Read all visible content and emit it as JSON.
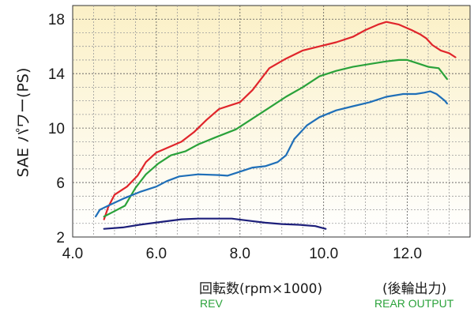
{
  "chart_data": {
    "type": "line",
    "title": "",
    "ylabel": "SAE パワー(PS)",
    "xlabel": "回転数(rpm×1000)",
    "xlabel_note": "(後輪出力)",
    "sublabels": {
      "rev": "REV",
      "rear_output": "REAR OUTPUT"
    },
    "xlim": [
      4.0,
      13.5
    ],
    "ylim": [
      2,
      19
    ],
    "xticks": [
      "4.0",
      "6.0",
      "8.0",
      "10.0",
      "12.0"
    ],
    "xtick_values": [
      4,
      6,
      8,
      10,
      12
    ],
    "yticks": [
      "2",
      "6",
      "10",
      "14",
      "18"
    ],
    "ytick_values": [
      2,
      6,
      10,
      14,
      18
    ],
    "grid": true,
    "background_gradient": [
      "#fbf0c6",
      "#ffffff"
    ],
    "series": [
      {
        "color": "#e0252b",
        "points": [
          [
            4.75,
            3.3
          ],
          [
            4.85,
            4.2
          ],
          [
            5.0,
            5.1
          ],
          [
            5.3,
            5.7
          ],
          [
            5.55,
            6.5
          ],
          [
            5.75,
            7.5
          ],
          [
            6.0,
            8.2
          ],
          [
            6.3,
            8.6
          ],
          [
            6.6,
            9.0
          ],
          [
            6.9,
            9.7
          ],
          [
            7.2,
            10.6
          ],
          [
            7.5,
            11.4
          ],
          [
            7.8,
            11.7
          ],
          [
            8.0,
            11.9
          ],
          [
            8.3,
            12.8
          ],
          [
            8.7,
            14.4
          ],
          [
            9.1,
            15.1
          ],
          [
            9.5,
            15.7
          ],
          [
            9.9,
            16.0
          ],
          [
            10.3,
            16.3
          ],
          [
            10.7,
            16.7
          ],
          [
            11.0,
            17.2
          ],
          [
            11.3,
            17.6
          ],
          [
            11.5,
            17.8
          ],
          [
            11.8,
            17.6
          ],
          [
            12.1,
            17.2
          ],
          [
            12.3,
            16.9
          ],
          [
            12.45,
            16.6
          ],
          [
            12.6,
            16.1
          ],
          [
            12.8,
            15.7
          ],
          [
            13.0,
            15.5
          ],
          [
            13.15,
            15.2
          ]
        ]
      },
      {
        "color": "#2aa23a",
        "points": [
          [
            4.75,
            3.5
          ],
          [
            5.0,
            3.9
          ],
          [
            5.25,
            4.3
          ],
          [
            5.5,
            5.6
          ],
          [
            5.75,
            6.6
          ],
          [
            6.05,
            7.4
          ],
          [
            6.35,
            8.0
          ],
          [
            6.7,
            8.3
          ],
          [
            7.0,
            8.8
          ],
          [
            7.4,
            9.3
          ],
          [
            7.9,
            9.9
          ],
          [
            8.3,
            10.7
          ],
          [
            8.7,
            11.5
          ],
          [
            9.1,
            12.3
          ],
          [
            9.5,
            13.0
          ],
          [
            9.9,
            13.8
          ],
          [
            10.3,
            14.2
          ],
          [
            10.7,
            14.5
          ],
          [
            11.1,
            14.7
          ],
          [
            11.5,
            14.9
          ],
          [
            11.8,
            15.0
          ],
          [
            12.0,
            15.0
          ],
          [
            12.3,
            14.7
          ],
          [
            12.5,
            14.5
          ],
          [
            12.75,
            14.4
          ],
          [
            12.85,
            14.0
          ],
          [
            12.95,
            13.6
          ]
        ]
      },
      {
        "color": "#1f6fb8",
        "points": [
          [
            4.55,
            3.5
          ],
          [
            4.65,
            4.0
          ],
          [
            4.85,
            4.3
          ],
          [
            5.2,
            4.8
          ],
          [
            5.6,
            5.3
          ],
          [
            6.0,
            5.7
          ],
          [
            6.25,
            6.1
          ],
          [
            6.55,
            6.45
          ],
          [
            7.0,
            6.6
          ],
          [
            7.5,
            6.55
          ],
          [
            7.7,
            6.5
          ],
          [
            8.0,
            6.8
          ],
          [
            8.3,
            7.1
          ],
          [
            8.6,
            7.2
          ],
          [
            8.9,
            7.5
          ],
          [
            9.1,
            8.0
          ],
          [
            9.3,
            9.2
          ],
          [
            9.6,
            10.2
          ],
          [
            9.9,
            10.8
          ],
          [
            10.3,
            11.3
          ],
          [
            10.7,
            11.6
          ],
          [
            11.1,
            11.9
          ],
          [
            11.5,
            12.3
          ],
          [
            11.9,
            12.5
          ],
          [
            12.2,
            12.5
          ],
          [
            12.4,
            12.6
          ],
          [
            12.55,
            12.7
          ],
          [
            12.7,
            12.5
          ],
          [
            12.9,
            12.0
          ],
          [
            12.95,
            11.8
          ]
        ]
      },
      {
        "color": "#1d1f7a",
        "points": [
          [
            4.75,
            2.6
          ],
          [
            5.2,
            2.7
          ],
          [
            5.6,
            2.9
          ],
          [
            6.1,
            3.1
          ],
          [
            6.6,
            3.3
          ],
          [
            7.0,
            3.35
          ],
          [
            7.4,
            3.35
          ],
          [
            7.8,
            3.35
          ],
          [
            8.2,
            3.2
          ],
          [
            8.6,
            3.05
          ],
          [
            9.0,
            2.95
          ],
          [
            9.4,
            2.9
          ],
          [
            9.8,
            2.8
          ],
          [
            10.05,
            2.6
          ]
        ]
      }
    ]
  }
}
